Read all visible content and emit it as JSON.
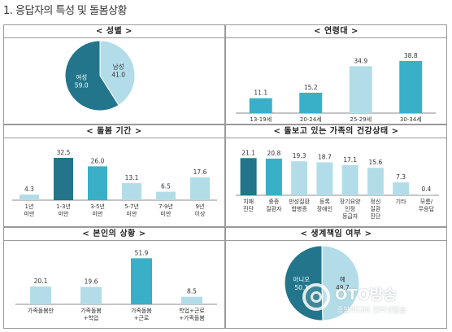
{
  "page_title": "1. 응답자의 특성 및 돌봄상황",
  "colors": {
    "light": "#b2dde8",
    "teal": "#3aafc8",
    "dark": "#23758b",
    "axis": "#888888"
  },
  "chart_data": [
    {
      "id": "gender",
      "type": "pie",
      "title": "< 성별 >",
      "slices": [
        {
          "label": "남성",
          "value": 41.0,
          "display": "41.0",
          "color": "light",
          "text_color": "#333333"
        },
        {
          "label": "여성",
          "value": 59.0,
          "display": "59.0",
          "color": "dark",
          "text_color": "#ffffff"
        }
      ]
    },
    {
      "id": "age",
      "type": "bar",
      "title": "< 연령대 >",
      "categories": [
        "13-19세",
        "20-24세",
        "25-29세",
        "30-34세"
      ],
      "values": [
        11.1,
        15.2,
        34.9,
        38.8
      ],
      "labels": [
        "11.1",
        "15.2",
        "34.9",
        "38.8"
      ],
      "colors": [
        "teal",
        "teal",
        "light",
        "teal"
      ],
      "ylim": [
        0,
        40
      ]
    },
    {
      "id": "care",
      "type": "bar",
      "title": "< 돌봄 기간 >",
      "categories": [
        "1년\n미만",
        "1-3년\n미만",
        "3-5년\n미만",
        "5-7년\n미만",
        "7-9년\n미만",
        "9년\n이상"
      ],
      "values": [
        4.3,
        32.5,
        26.0,
        13.1,
        6.5,
        17.6
      ],
      "labels": [
        "4.3",
        "32.5",
        "26.0",
        "13.1",
        "6.5",
        "17.6"
      ],
      "colors": [
        "light",
        "dark",
        "teal",
        "light",
        "light",
        "light"
      ],
      "ylim": [
        0,
        35
      ]
    },
    {
      "id": "health",
      "type": "bar",
      "title": "< 돌보고 있는 가족의 건강상태 >",
      "categories": [
        "치매\n진단",
        "중증\n질환자",
        "만성질환\n합병증",
        "등록\n장애인",
        "장기요양\n인정\n등급자",
        "정신\n질환\n진단",
        "기타",
        "모름/\n무응답"
      ],
      "values": [
        21.1,
        20.8,
        19.3,
        18.7,
        17.1,
        15.6,
        7.3,
        0.4
      ],
      "labels": [
        "21.1",
        "20.8",
        "19.3",
        "18.7",
        "17.1",
        "15.6",
        "7.3",
        "0.4"
      ],
      "colors": [
        "dark",
        "teal",
        "light",
        "light",
        "light",
        "light",
        "light",
        "light"
      ],
      "ylim": [
        0,
        24
      ]
    },
    {
      "id": "self",
      "type": "bar",
      "title": "< 본인의 상황 >",
      "categories": [
        "가족돌봄만",
        "가족돌봄\n+학업",
        "가족돌봄\n+근로",
        "학업+근로\n+가족돌봄"
      ],
      "values": [
        20.1,
        19.6,
        51.9,
        8.5
      ],
      "labels": [
        "20.1",
        "19.6",
        "51.9",
        "8.5"
      ],
      "colors": [
        "light",
        "light",
        "teal",
        "light"
      ],
      "ylim": [
        0,
        55
      ]
    },
    {
      "id": "econ",
      "type": "pie",
      "title": "< 생계책임 여부 >",
      "slices": [
        {
          "label": "예",
          "value": 49.7,
          "display": "49.7",
          "color": "light",
          "text_color": "#333333"
        },
        {
          "label": "아니오",
          "value": 50.3,
          "display": "50.3",
          "color": "dark",
          "text_color": "#ffffff"
        }
      ]
    }
  ],
  "watermark": {
    "name": "OTO방송",
    "sub": "종합미디어 인터넷방송"
  }
}
